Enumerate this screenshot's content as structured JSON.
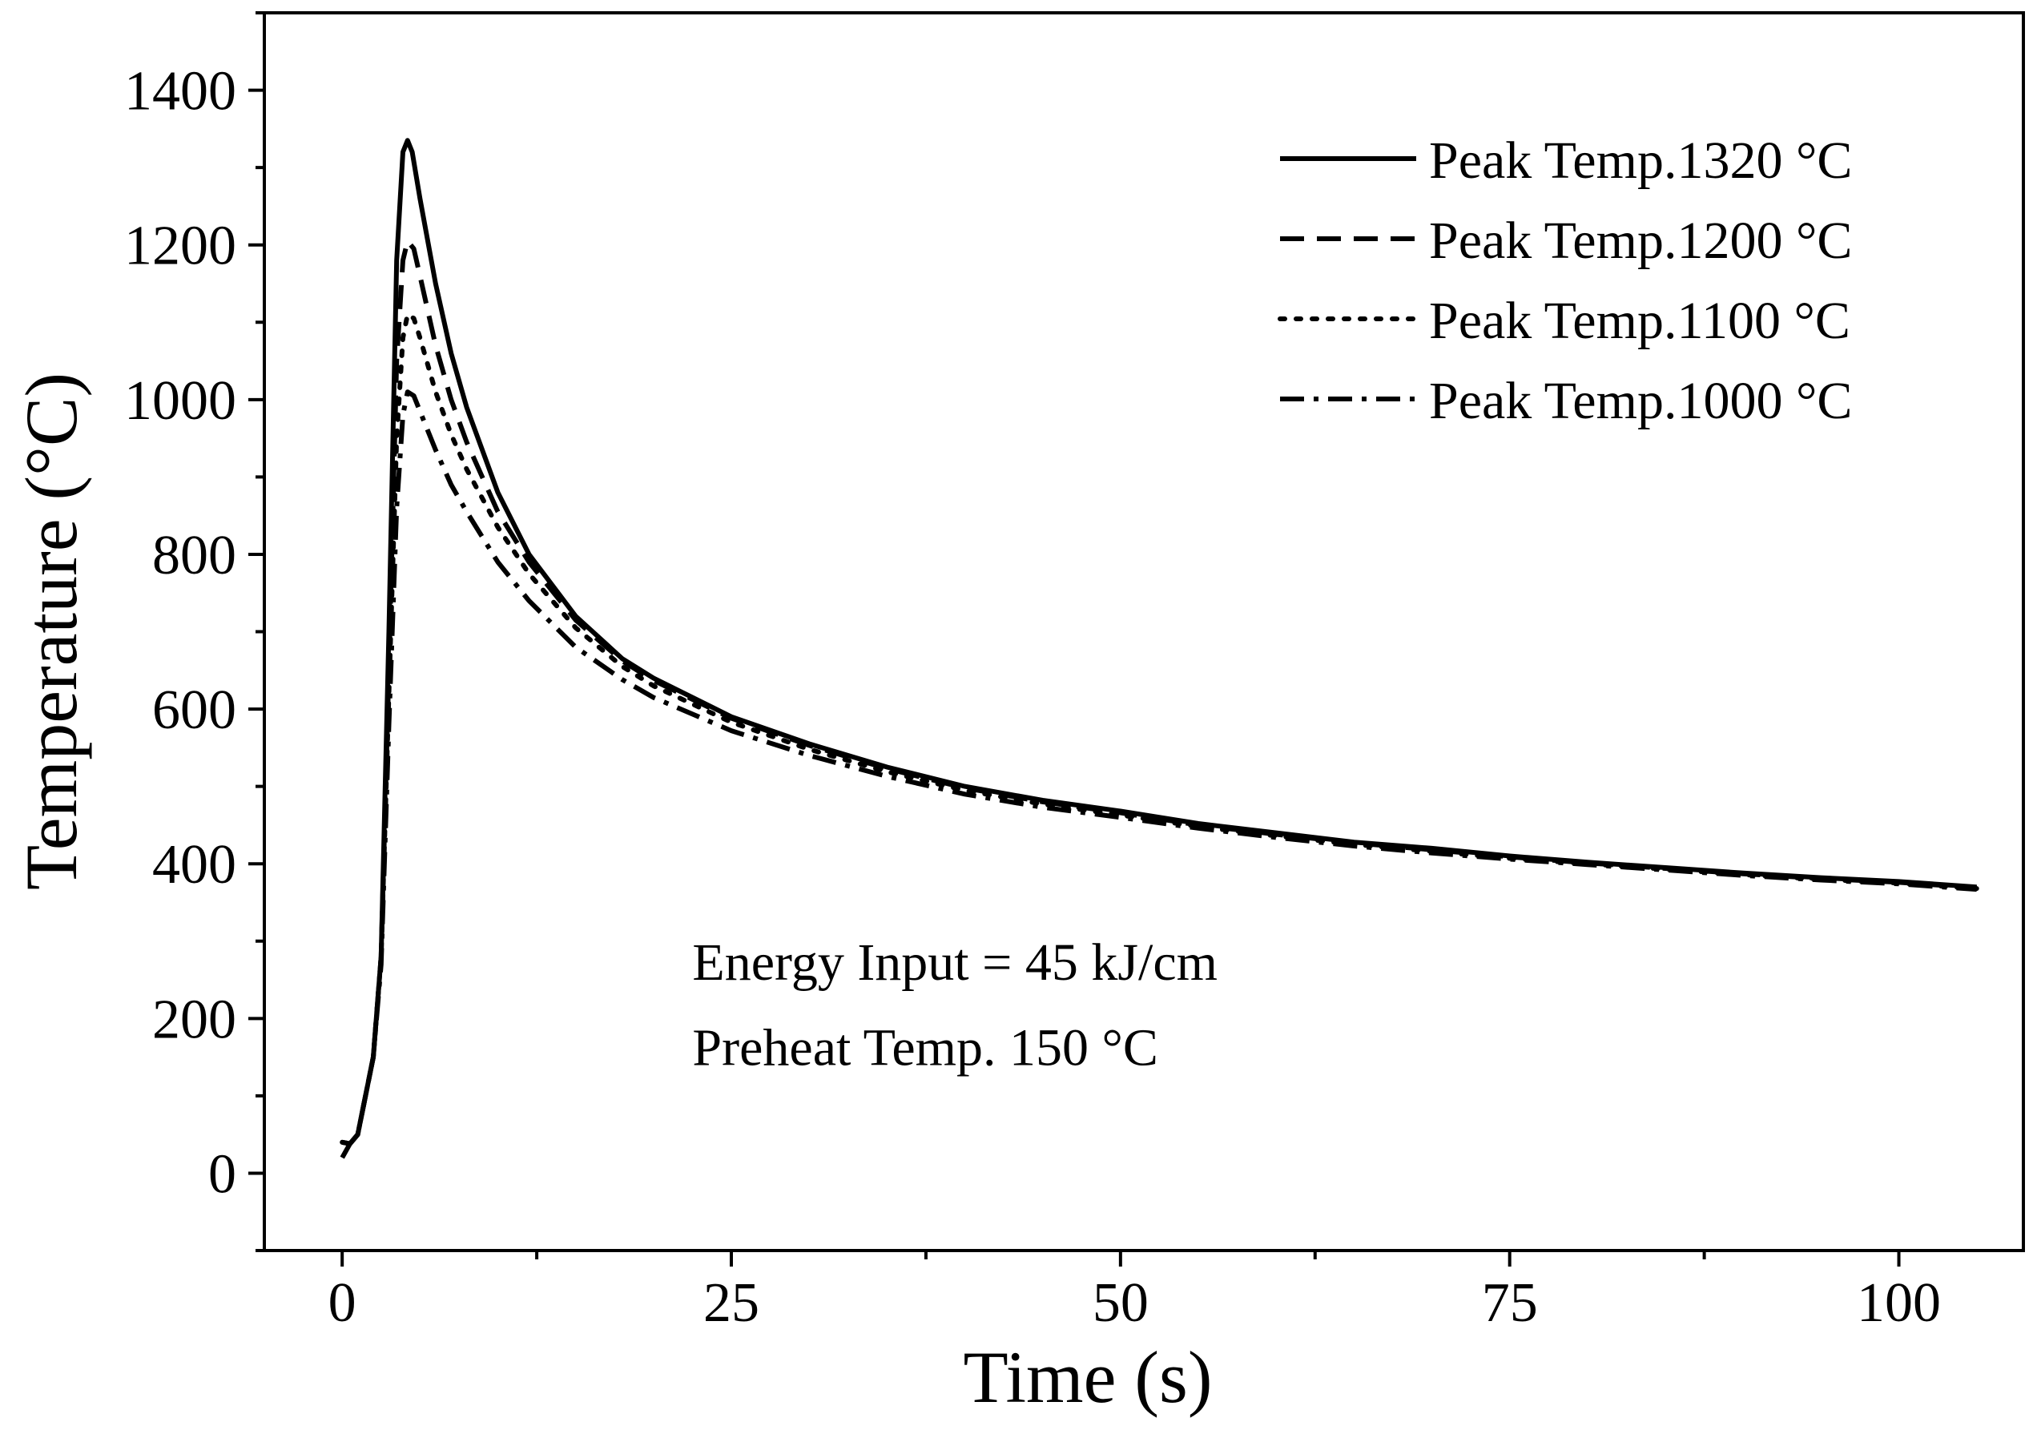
{
  "chart_data": {
    "type": "line",
    "title": "",
    "xlabel": "Time (s)",
    "ylabel": "Temperature (°C)",
    "xlim": [
      -5,
      108
    ],
    "ylim": [
      -100,
      1500
    ],
    "x_major_ticks": [
      0,
      25,
      50,
      75,
      100
    ],
    "x_tick_labels": [
      "0",
      "25",
      "50",
      "75",
      "100"
    ],
    "y_major_ticks": [
      0,
      200,
      400,
      600,
      800,
      1000,
      1200,
      1400
    ],
    "y_tick_labels": [
      "0",
      "200",
      "400",
      "600",
      "800",
      "1000",
      "1200",
      "1400"
    ],
    "legend_position": "top-right",
    "annotations": [
      {
        "text": "Energy Input = 45  kJ/cm",
        "x": 22.5,
        "y": 250
      },
      {
        "text": "Preheat Temp. 150 °C",
        "x": 22.5,
        "y": 140
      }
    ],
    "series": [
      {
        "name": "Peak Temp.1320 °C",
        "dash": "solid",
        "x": [
          0,
          0.5,
          1,
          2,
          2.5,
          3,
          3.5,
          3.9,
          4.2,
          4.5,
          5,
          6,
          7,
          8,
          10,
          12,
          15,
          18,
          20,
          25,
          30,
          35,
          40,
          45,
          50,
          55,
          60,
          65,
          70,
          75,
          80,
          85,
          90,
          95,
          100,
          105
        ],
        "values": [
          40,
          38,
          50,
          150,
          280,
          700,
          1180,
          1320,
          1335,
          1320,
          1260,
          1150,
          1060,
          990,
          880,
          800,
          720,
          665,
          640,
          590,
          555,
          525,
          500,
          482,
          468,
          452,
          440,
          428,
          420,
          410,
          402,
          395,
          388,
          382,
          377,
          370
        ]
      },
      {
        "name": "Peak Temp.1200 °C",
        "dash": "dashed",
        "x": [
          0,
          0.5,
          1,
          2,
          2.5,
          3,
          3.5,
          3.9,
          4.2,
          4.6,
          5,
          6,
          7,
          8,
          10,
          12,
          15,
          18,
          20,
          25,
          30,
          35,
          40,
          45,
          50,
          55,
          60,
          65,
          70,
          75,
          80,
          85,
          90,
          95,
          100,
          105
        ],
        "values": [
          40,
          38,
          50,
          150,
          280,
          650,
          1050,
          1180,
          1205,
          1195,
          1160,
          1070,
          1000,
          945,
          855,
          790,
          715,
          662,
          637,
          588,
          553,
          523,
          498,
          480,
          466,
          450,
          438,
          427,
          418,
          409,
          401,
          394,
          387,
          381,
          376,
          369
        ]
      },
      {
        "name": "Peak Temp.1100 °C",
        "dash": "dotted",
        "x": [
          0,
          0.5,
          1,
          2,
          2.5,
          3,
          3.5,
          3.9,
          4.2,
          4.6,
          5,
          6,
          7,
          8,
          10,
          12,
          15,
          18,
          20,
          25,
          30,
          35,
          40,
          45,
          50,
          55,
          60,
          65,
          70,
          75,
          80,
          85,
          90,
          95,
          100,
          105
        ],
        "values": [
          40,
          38,
          50,
          150,
          280,
          620,
          950,
          1080,
          1110,
          1105,
          1080,
          1010,
          955,
          910,
          835,
          775,
          705,
          655,
          630,
          583,
          548,
          519,
          495,
          477,
          463,
          448,
          436,
          425,
          416,
          407,
          400,
          393,
          386,
          380,
          375,
          368
        ]
      },
      {
        "name": "Peak Temp.1000 °C",
        "dash": "dashdot",
        "x": [
          0,
          0.5,
          1,
          2,
          2.5,
          3,
          3.5,
          3.9,
          4.2,
          4.6,
          5,
          6,
          7,
          8,
          10,
          12,
          15,
          18,
          20,
          25,
          30,
          35,
          40,
          45,
          50,
          55,
          60,
          65,
          70,
          75,
          80,
          85,
          90,
          95,
          100,
          105
        ],
        "values": [
          20,
          38,
          50,
          150,
          270,
          580,
          860,
          980,
          1010,
          1005,
          985,
          935,
          890,
          855,
          790,
          740,
          680,
          638,
          615,
          572,
          540,
          513,
          490,
          473,
          460,
          446,
          434,
          423,
          414,
          406,
          399,
          392,
          385,
          379,
          374,
          367
        ]
      }
    ]
  }
}
